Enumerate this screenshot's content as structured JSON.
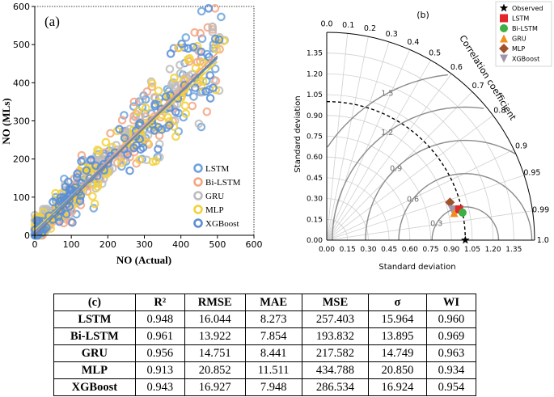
{
  "chart_data": [
    {
      "type": "scatter",
      "panel_label": "(a)",
      "xlabel": "NO (Actual)",
      "ylabel": "NO (MLs)",
      "xlim": [
        0,
        600
      ],
      "ylim": [
        0,
        600
      ],
      "xticks": [
        "0",
        "100",
        "200",
        "300",
        "400",
        "500",
        "600"
      ],
      "yticks": [
        "0",
        "100",
        "200",
        "300",
        "400",
        "500",
        "600"
      ],
      "legend_position": "bottom-right",
      "series": [
        {
          "name": "LSTM",
          "color": "#6fa3dc",
          "fit_line": [
            [
              0,
              12
            ],
            [
              500,
              470
            ]
          ]
        },
        {
          "name": "Bi-LSTM",
          "color": "#f4a582",
          "fit_line": [
            [
              0,
              8
            ],
            [
              500,
              478
            ]
          ]
        },
        {
          "name": "GRU",
          "color": "#bdbdbd",
          "fit_line": [
            [
              0,
              10
            ],
            [
              500,
              465
            ]
          ]
        },
        {
          "name": "MLP",
          "color": "#f2d13a",
          "fit_line": [
            [
              0,
              14
            ],
            [
              500,
              455
            ]
          ]
        },
        {
          "name": "XGBoost",
          "color": "#5b8ed6",
          "fit_line": [
            [
              0,
              10
            ],
            [
              500,
              465
            ]
          ]
        }
      ],
      "point_cloud": {
        "x_range": [
          0,
          520
        ],
        "spread": 45,
        "points_per_series": 120
      }
    },
    {
      "type": "taylor-diagram",
      "panel_label": "(b)",
      "xlabel": "Standard deviation",
      "ylabel": "Standard deviation",
      "arc_label": "Correlation coefficient",
      "std_ticks": [
        "0.00",
        "0.15",
        "0.30",
        "0.45",
        "0.60",
        "0.75",
        "0.90",
        "1.05",
        "1.20",
        "1.35"
      ],
      "corr_ticks": [
        "0.0",
        "0.1",
        "0.2",
        "0.3",
        "0.4",
        "0.5",
        "0.6",
        "0.7",
        "0.8",
        "0.9",
        "0.95",
        "0.99",
        "1.0"
      ],
      "rms_labels": [
        "0.3",
        "0.6",
        "0.9",
        "1.2",
        "1.5"
      ],
      "std_max": 1.5,
      "reference_std": 1.0,
      "legend_position": "top-right",
      "points": [
        {
          "name": "Observed",
          "std": 1.0,
          "corr": 1.0,
          "marker": "star",
          "color": "#000000"
        },
        {
          "name": "LSTM",
          "std": 0.98,
          "corr": 0.974,
          "marker": "square",
          "color": "#e3262a"
        },
        {
          "name": "Bi-LSTM",
          "std": 1.0,
          "corr": 0.98,
          "marker": "circle",
          "color": "#3cb043"
        },
        {
          "name": "GRU",
          "std": 0.94,
          "corr": 0.978,
          "marker": "triangle",
          "color": "#f18d1e"
        },
        {
          "name": "MLP",
          "std": 0.93,
          "corr": 0.956,
          "marker": "diamond",
          "color": "#a0522d"
        },
        {
          "name": "XGBoost",
          "std": 0.93,
          "corr": 0.971,
          "marker": "triangle-down",
          "color": "#9e96a8"
        }
      ]
    },
    {
      "type": "table",
      "panel_label": "(c)",
      "columns": [
        "R²",
        "RMSE",
        "MAE",
        "MSE",
        "σ",
        "WI"
      ],
      "rows": [
        {
          "model": "LSTM",
          "values": [
            "0.948",
            "16.044",
            "8.273",
            "257.403",
            "15.964",
            "0.960"
          ]
        },
        {
          "model": "Bi-LSTM",
          "values": [
            "0.961",
            "13.922",
            "7.854",
            "193.832",
            "13.895",
            "0.969"
          ]
        },
        {
          "model": "GRU",
          "values": [
            "0.956",
            "14.751",
            "8.441",
            "217.582",
            "14.749",
            "0.963"
          ]
        },
        {
          "model": "MLP",
          "values": [
            "0.913",
            "20.852",
            "11.511",
            "434.788",
            "20.850",
            "0.934"
          ]
        },
        {
          "model": "XGBoost",
          "values": [
            "0.943",
            "16.927",
            "7.948",
            "286.534",
            "16.924",
            "0.954"
          ]
        }
      ]
    }
  ]
}
